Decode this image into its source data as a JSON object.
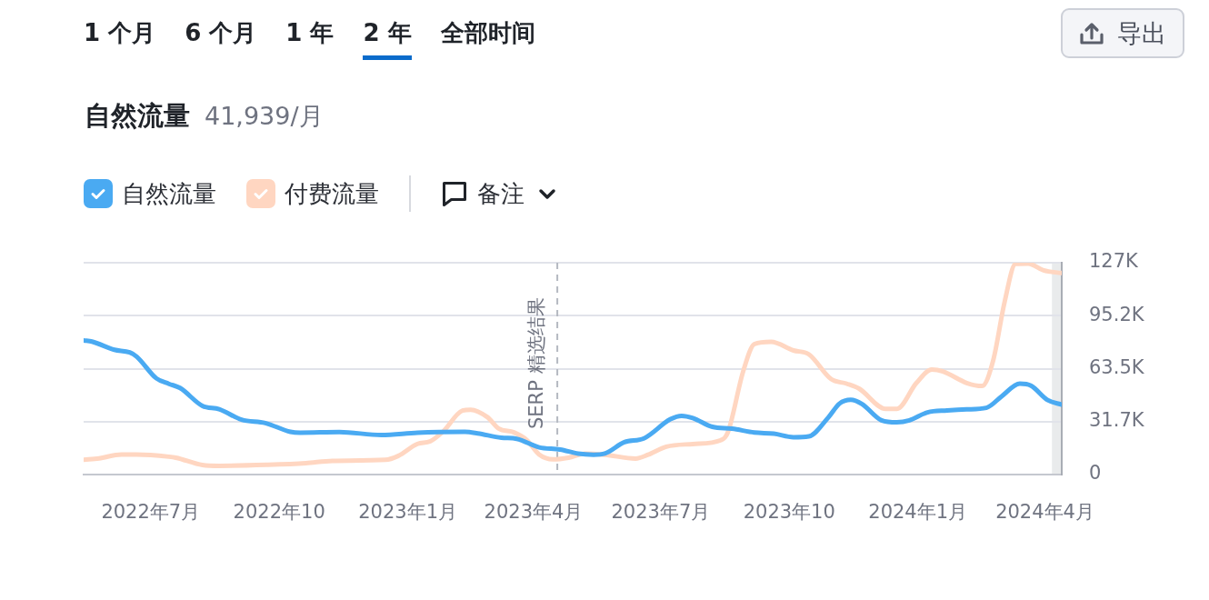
{
  "chart_data": {
    "type": "line",
    "title": "自然流量",
    "subtitle": "41,939/月",
    "annotations": [
      "1 个月",
      "6 个月",
      "1 年",
      "2 年",
      "全部时间",
      "备注",
      "导出"
    ],
    "xlim": [
      "2022-05-14",
      "2024-04-13"
    ],
    "xticks": [
      {
        "value": "2022-07-01",
        "label": "2022年7月"
      },
      {
        "value": "2022-10-01",
        "label": "2022年10"
      },
      {
        "value": "2023-01-01",
        "label": "2023年1月"
      },
      {
        "value": "2023-04-01",
        "label": "2023年4月"
      },
      {
        "value": "2023-07-01",
        "label": "2023年7月"
      },
      {
        "value": "2023-10-01",
        "label": "2023年10"
      },
      {
        "value": "2024-01-01",
        "label": "2024年1月"
      },
      {
        "value": "2024-04-01",
        "label": "2024年4月"
      }
    ],
    "ylim": [
      0,
      127000
    ],
    "yticks": [
      0,
      {
        "value": 31750,
        "label": "31.7K"
      },
      {
        "value": 63500,
        "label": "63.5K"
      },
      {
        "value": 95250,
        "label": "95.2K"
      },
      {
        "value": 127000,
        "label": "127K"
      }
    ],
    "grid": "y",
    "legend": "top left",
    "marker": "none",
    "line_style": "solid",
    "ref_lines": [
      {
        "axis": "x",
        "value": "2023-04-18",
        "label": "SERP 精选结果",
        "color": "#b5b9c1",
        "line_style": "dashed"
      }
    ],
    "bands": [
      {
        "axis": "x",
        "from": "2024-04-06",
        "to": "2024-04-13",
        "color": "#e9ebec"
      }
    ],
    "series": [
      {
        "name": "自然流量",
        "color": "#4aaaf2",
        "x": [
          "2022-05-14",
          "2022-05-20",
          "2022-06-05",
          "2022-06-16",
          "2022-06-21",
          "2022-07-05",
          "2022-07-14",
          "2022-07-22",
          "2022-08-07",
          "2022-08-19",
          "2022-09-04",
          "2022-09-21",
          "2022-10-09",
          "2022-10-16",
          "2022-11-13",
          "2022-12-13",
          "2023-01-08",
          "2023-02-11",
          "2023-02-20",
          "2023-03-09",
          "2023-03-20",
          "2023-04-05",
          "2023-04-20",
          "2023-05-03",
          "2023-05-14",
          "2023-05-22",
          "2023-06-05",
          "2023-06-19",
          "2023-07-08",
          "2023-07-16",
          "2023-07-24",
          "2023-08-07",
          "2023-08-21",
          "2023-09-06",
          "2023-09-20",
          "2023-10-04",
          "2023-10-15",
          "2023-10-29",
          "2023-11-06",
          "2023-11-14",
          "2023-11-22",
          "2023-12-06",
          "2023-12-17",
          "2023-12-26",
          "2024-01-08",
          "2024-01-22",
          "2024-02-05",
          "2024-02-19",
          "2024-03-01",
          "2024-03-14",
          "2024-03-22",
          "2024-04-03",
          "2024-04-13"
        ],
        "values": [
          80400,
          79700,
          74800,
          73200,
          70700,
          57700,
          54400,
          51900,
          41200,
          39200,
          32900,
          30900,
          25600,
          25100,
          25500,
          23700,
          25100,
          25600,
          24700,
          22100,
          21400,
          16300,
          15000,
          12500,
          11900,
          12600,
          19400,
          21700,
          33200,
          35200,
          33900,
          28600,
          27500,
          25200,
          24500,
          22400,
          22900,
          34300,
          42600,
          44800,
          42300,
          32500,
          31300,
          32500,
          37300,
          38400,
          39100,
          40000,
          46900,
          54500,
          53300,
          44600,
          41900
        ]
      },
      {
        "name": "付费流量",
        "color": "#ffd6c1",
        "x": [
          "2022-05-14",
          "2022-05-25",
          "2022-06-10",
          "2022-06-21",
          "2022-07-14",
          "2022-07-19",
          "2022-08-07",
          "2022-08-19",
          "2022-09-22",
          "2022-10-20",
          "2022-11-08",
          "2022-12-16",
          "2022-12-25",
          "2023-01-08",
          "2023-01-17",
          "2023-01-26",
          "2023-02-09",
          "2023-02-15",
          "2023-02-27",
          "2023-03-07",
          "2023-03-18",
          "2023-03-27",
          "2023-04-05",
          "2023-04-15",
          "2023-04-26",
          "2023-05-08",
          "2023-05-22",
          "2023-06-13",
          "2023-06-22",
          "2023-07-05",
          "2023-07-24",
          "2023-08-13",
          "2023-08-18",
          "2023-08-29",
          "2023-09-06",
          "2023-09-18",
          "2023-10-04",
          "2023-10-15",
          "2023-10-31",
          "2023-11-11",
          "2023-11-20",
          "2023-12-09",
          "2023-12-17",
          "2023-12-31",
          "2024-01-11",
          "2024-01-19",
          "2024-02-05",
          "2024-02-16",
          "2024-02-24",
          "2024-03-03",
          "2024-03-11",
          "2024-03-20",
          "2024-03-31",
          "2024-04-13"
        ],
        "values": [
          8800,
          9700,
          12000,
          12000,
          10700,
          10100,
          5700,
          5200,
          5800,
          6800,
          8200,
          8800,
          11100,
          18400,
          19900,
          25600,
          38300,
          38900,
          34400,
          27600,
          25300,
          20800,
          12000,
          9100,
          10100,
          12600,
          11900,
          9600,
          11900,
          16700,
          18300,
          20600,
          25200,
          61800,
          78200,
          79600,
          74400,
          72100,
          57200,
          54500,
          51500,
          39400,
          39400,
          54900,
          62900,
          61800,
          54900,
          53100,
          68600,
          103000,
          126300,
          126500,
          122400,
          120800
        ]
      }
    ]
  }
}
